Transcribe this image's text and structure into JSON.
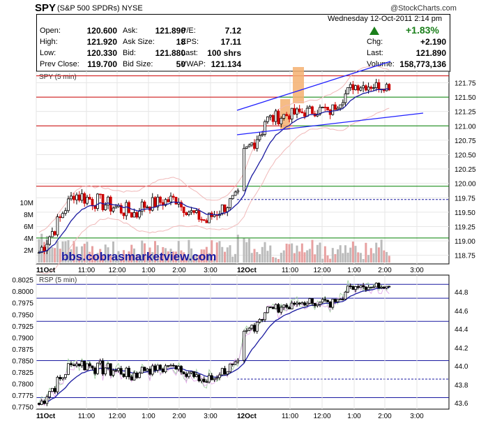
{
  "header": {
    "ticker": "SPY",
    "company": "(S&P 500 SPDRs)",
    "exchange": "NYSE",
    "copyright": "@StockCharts.com",
    "date_time": "Wednesday  12-Oct-2011  2:14 pm",
    "pct_change": "+1.83%",
    "col1": [
      {
        "label": "Open:",
        "value": "120.600"
      },
      {
        "label": "High:",
        "value": "121.920"
      },
      {
        "label": "Low:",
        "value": "120.330"
      },
      {
        "label": "Prev Close:",
        "value": "119.700"
      }
    ],
    "col2": [
      {
        "label": "Ask:",
        "value": "121.890"
      },
      {
        "label": "Ask Size:",
        "value": "18"
      },
      {
        "label": "Bid:",
        "value": "121.880"
      },
      {
        "label": "Bid Size:",
        "value": "50"
      }
    ],
    "col3": [
      {
        "label": "P/E:",
        "value": "7.12"
      },
      {
        "label": "EPS:",
        "value": "17.11"
      },
      {
        "label": "Last:",
        "value": "100 shrs"
      },
      {
        "label": "VWAP:",
        "value": "121.134"
      }
    ],
    "col4": [
      {
        "label": "Chg:",
        "value": "+2.190"
      },
      {
        "label": "Last:",
        "value": "121.890"
      },
      {
        "label": "Volume:",
        "value": "158,773,136"
      }
    ]
  },
  "watermark": "bbs.cobrasmarketview.com",
  "colors": {
    "up": "#000000",
    "down": "#cc0000",
    "ma_blue": "#1a1aa0",
    "bollinger": "#f0b8b8",
    "volume": "#bbbbbb",
    "volume_down": "#e8a0a0",
    "hline_red": "#cc0000",
    "hline_green": "#008000",
    "highlight": "#f5b070",
    "trend": "#2020ff"
  },
  "chart_data": [
    {
      "type": "candlestick",
      "title": "SPY (5 min)",
      "y_ticks": [
        "121.75",
        "121.50",
        "121.25",
        "121.00",
        "120.75",
        "120.50",
        "120.25",
        "120.00",
        "119.75",
        "119.50",
        "119.25",
        "119.00",
        "118.75"
      ],
      "ylim": [
        118.6,
        121.95
      ],
      "volume_ticks": [
        "10M",
        "8M",
        "6M",
        "4M",
        "2M"
      ],
      "x_ticks": [
        "11Oct",
        "11:00",
        "12:00",
        "1:00",
        "2:00",
        "3:00",
        "12Oct",
        "11:00",
        "12:00",
        "1:00",
        "2:00",
        "3:00"
      ],
      "levels": [
        {
          "value": 121.87,
          "color": "red"
        },
        {
          "value": 121.5,
          "color": "red/green"
        },
        {
          "value": 121.0,
          "color": "red/green"
        },
        {
          "value": 119.95,
          "color": "red/green"
        },
        {
          "value": 119.72,
          "color": "dotted blue"
        },
        {
          "value": 119.05,
          "color": "green"
        }
      ],
      "day1_close_approx": 119.7,
      "day2_last": 121.89
    },
    {
      "type": "line",
      "title": "RSP (5 min)",
      "y_ticks_left": [
        "0.8025",
        "0.8000",
        "0.7975",
        "0.7950",
        "0.7925",
        "0.7900",
        "0.7875",
        "0.7850",
        "0.7825",
        "0.7800",
        "0.7775",
        "0.7750"
      ],
      "y_ticks_right": [
        "44.8",
        "44.6",
        "44.4",
        "44.2",
        "44.0",
        "43.8",
        "43.6"
      ],
      "x_ticks": [
        "11Oct",
        "11:00",
        "12:00",
        "1:00",
        "2:00",
        "3:00",
        "12Oct",
        "11:00",
        "12:00",
        "1:00",
        "2:00",
        "3:00"
      ]
    }
  ]
}
